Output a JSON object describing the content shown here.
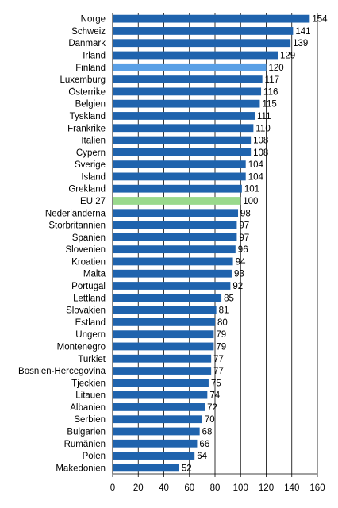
{
  "chart_data": {
    "type": "bar",
    "orientation": "horizontal",
    "categories": [
      "Norge",
      "Schweiz",
      "Danmark",
      "Irland",
      "Finland",
      "Luxemburg",
      "Österrike",
      "Belgien",
      "Tyskland",
      "Frankrike",
      "Italien",
      "Cypern",
      "Sverige",
      "Island",
      "Grekland",
      "EU 27",
      "Nederländerna",
      "Storbritannien",
      "Spanien",
      "Slovenien",
      "Kroatien",
      "Malta",
      "Portugal",
      "Lettland",
      "Slovakien",
      "Estland",
      "Ungern",
      "Montenegro",
      "Turkiet",
      "Bosnien-Hercegovina",
      "Tjeckien",
      "Litauen",
      "Albanien",
      "Serbien",
      "Bulgarien",
      "Rumänien",
      "Polen",
      "Makedonien"
    ],
    "values": [
      154,
      141,
      139,
      129,
      120,
      117,
      116,
      115,
      111,
      110,
      108,
      108,
      104,
      104,
      101,
      100,
      98,
      97,
      97,
      96,
      94,
      93,
      92,
      85,
      81,
      80,
      79,
      79,
      77,
      77,
      75,
      74,
      72,
      70,
      68,
      66,
      64,
      52
    ],
    "value_labels": [
      "154",
      "141",
      "139",
      "129",
      "120",
      "117",
      "116",
      "115",
      "111",
      "110",
      "108",
      "108",
      "104",
      "104",
      "101",
      "100",
      "98",
      "97",
      "97",
      "96",
      "94",
      "93",
      "92",
      "85",
      "81",
      "80",
      "79",
      "79",
      "77",
      "77",
      "75",
      "74",
      "72",
      "70",
      "68",
      "66",
      "64",
      "52"
    ],
    "xlim": [
      0,
      160
    ],
    "x_ticks": [
      "0",
      "20",
      "40",
      "60",
      "80",
      "100",
      "120",
      "140",
      "160"
    ],
    "grid": "vertical",
    "legend": "none",
    "title": "",
    "xlabel": "",
    "ylabel": "",
    "colors": {
      "default": "#1f63ad",
      "highlight_finland": "#5aa0e6",
      "highlight_eu": "#99d98c",
      "grid": "#000000"
    },
    "highlights": {
      "Finland": "highlight_finland",
      "EU 27": "highlight_eu"
    }
  }
}
